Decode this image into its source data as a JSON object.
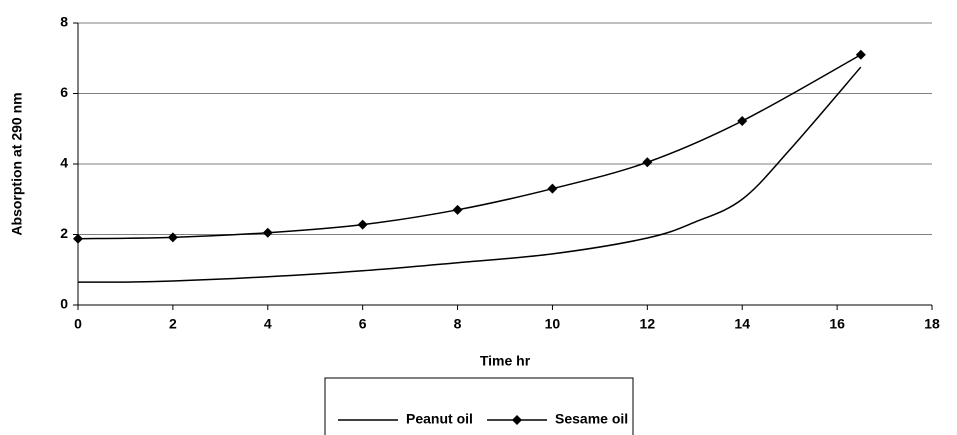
{
  "chart_data": {
    "type": "line",
    "x_label": "Time hr",
    "y_label": "Absorption at 290 nm",
    "xlim": [
      0,
      18
    ],
    "xticks": [
      0,
      2,
      4,
      6,
      8,
      10,
      12,
      14,
      16,
      18
    ],
    "ylim": [
      0,
      8
    ],
    "yticks": [
      0,
      2,
      4,
      6,
      8
    ],
    "grid": true,
    "legend": "bottom",
    "series": [
      {
        "name": "Peanut oil",
        "color": "#000000",
        "marker": "none",
        "x": [
          0,
          1,
          2,
          4,
          6,
          8,
          10,
          12,
          13,
          14,
          15,
          16.5
        ],
        "values": [
          0.65,
          0.65,
          0.68,
          0.8,
          0.97,
          1.2,
          1.45,
          1.9,
          2.35,
          3.0,
          4.4,
          6.75
        ]
      },
      {
        "name": "Sesame oil",
        "color": "#000000",
        "marker": "diamond",
        "x": [
          0,
          2,
          4,
          6,
          8,
          10,
          12,
          14,
          16.5
        ],
        "values": [
          1.88,
          1.92,
          2.05,
          2.28,
          2.7,
          3.3,
          4.05,
          5.22,
          7.1
        ]
      }
    ]
  }
}
